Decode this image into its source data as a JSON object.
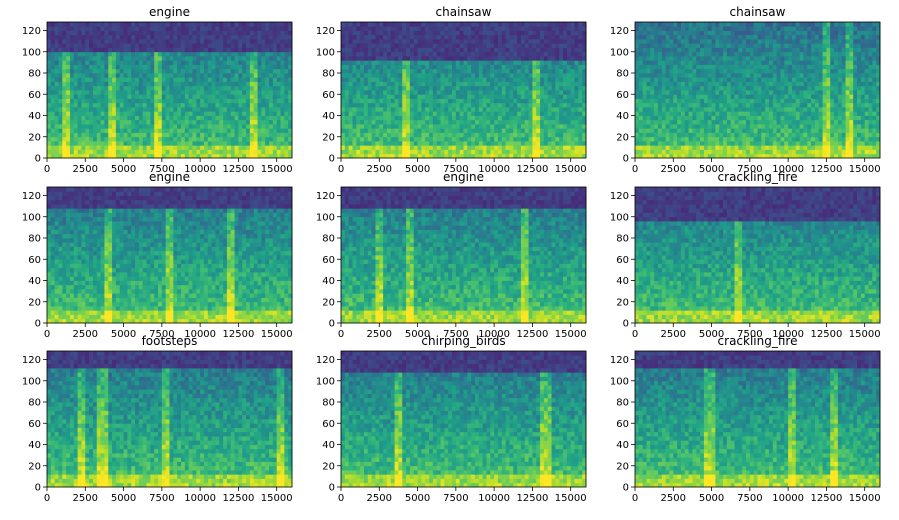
{
  "figure": {
    "layout": "3x3 grid of spectrograms"
  },
  "chart_data": [
    {
      "type": "heatmap",
      "title": "engine",
      "xlim": [
        0,
        16000
      ],
      "ylim": [
        0,
        128
      ],
      "xticks": [
        0,
        2500,
        5000,
        7500,
        10000,
        12500,
        15000
      ],
      "yticks": [
        0,
        20,
        40,
        60,
        80,
        100,
        120
      ],
      "colormap": "viridis",
      "cutoff_bin": 100,
      "bright_cols": [
        1300,
        4200,
        7300,
        13500
      ]
    },
    {
      "type": "heatmap",
      "title": "chainsaw",
      "xlim": [
        0,
        16000
      ],
      "ylim": [
        0,
        128
      ],
      "xticks": [
        0,
        2500,
        5000,
        7500,
        10000,
        12500,
        15000
      ],
      "yticks": [
        0,
        20,
        40,
        60,
        80,
        100,
        120
      ],
      "colormap": "viridis",
      "cutoff_bin": 92,
      "bright_cols": [
        4200,
        12800
      ]
    },
    {
      "type": "heatmap",
      "title": "chainsaw",
      "xlim": [
        0,
        16000
      ],
      "ylim": [
        0,
        128
      ],
      "xticks": [
        0,
        2500,
        5000,
        7500,
        10000,
        12500,
        15000
      ],
      "yticks": [
        0,
        20,
        40,
        60,
        80,
        100,
        120
      ],
      "colormap": "viridis",
      "cutoff_bin": 128,
      "bright_cols": [
        12500,
        14000
      ]
    },
    {
      "type": "heatmap",
      "title": "engine",
      "xlim": [
        0,
        16000
      ],
      "ylim": [
        0,
        128
      ],
      "xticks": [
        0,
        2500,
        5000,
        7500,
        10000,
        12500,
        15000
      ],
      "yticks": [
        0,
        20,
        40,
        60,
        80,
        100,
        120
      ],
      "colormap": "viridis",
      "cutoff_bin": 108,
      "bright_cols": [
        4000,
        8000,
        12000
      ]
    },
    {
      "type": "heatmap",
      "title": "engine",
      "xlim": [
        0,
        16000
      ],
      "ylim": [
        0,
        128
      ],
      "xticks": [
        0,
        2500,
        5000,
        7500,
        10000,
        12500,
        15000
      ],
      "yticks": [
        0,
        20,
        40,
        60,
        80,
        100,
        120
      ],
      "colormap": "viridis",
      "cutoff_bin": 108,
      "bright_cols": [
        2500,
        4500,
        12000
      ]
    },
    {
      "type": "heatmap",
      "title": "crackling_fire",
      "xlim": [
        0,
        16000
      ],
      "ylim": [
        0,
        128
      ],
      "xticks": [
        0,
        2500,
        5000,
        7500,
        10000,
        12500,
        15000
      ],
      "yticks": [
        0,
        20,
        40,
        60,
        80,
        100,
        120
      ],
      "colormap": "viridis",
      "cutoff_bin": 95,
      "bright_cols": [
        6700
      ]
    },
    {
      "type": "heatmap",
      "title": "footsteps",
      "xlim": [
        0,
        16000
      ],
      "ylim": [
        0,
        128
      ],
      "xticks": [
        0,
        2500,
        5000,
        7500,
        10000,
        12500,
        15000
      ],
      "yticks": [
        0,
        20,
        40,
        60,
        80,
        100,
        120
      ],
      "colormap": "viridis",
      "cutoff_bin": 112,
      "bright_cols": [
        2200,
        3600,
        7800,
        15200
      ]
    },
    {
      "type": "heatmap",
      "title": "chirping_birds",
      "xlim": [
        0,
        16000
      ],
      "ylim": [
        0,
        128
      ],
      "xticks": [
        0,
        2500,
        5000,
        7500,
        10000,
        12500,
        15000
      ],
      "yticks": [
        0,
        20,
        40,
        60,
        80,
        100,
        120
      ],
      "colormap": "viridis",
      "cutoff_bin": 108,
      "bright_cols": [
        3800,
        13400
      ]
    },
    {
      "type": "heatmap",
      "title": "crackling_fire",
      "xlim": [
        0,
        16000
      ],
      "ylim": [
        0,
        128
      ],
      "xticks": [
        0,
        2500,
        5000,
        7500,
        10000,
        12500,
        15000
      ],
      "yticks": [
        0,
        20,
        40,
        60,
        80,
        100,
        120
      ],
      "colormap": "viridis",
      "cutoff_bin": 110,
      "bright_cols": [
        4900,
        10200,
        13000
      ]
    }
  ]
}
